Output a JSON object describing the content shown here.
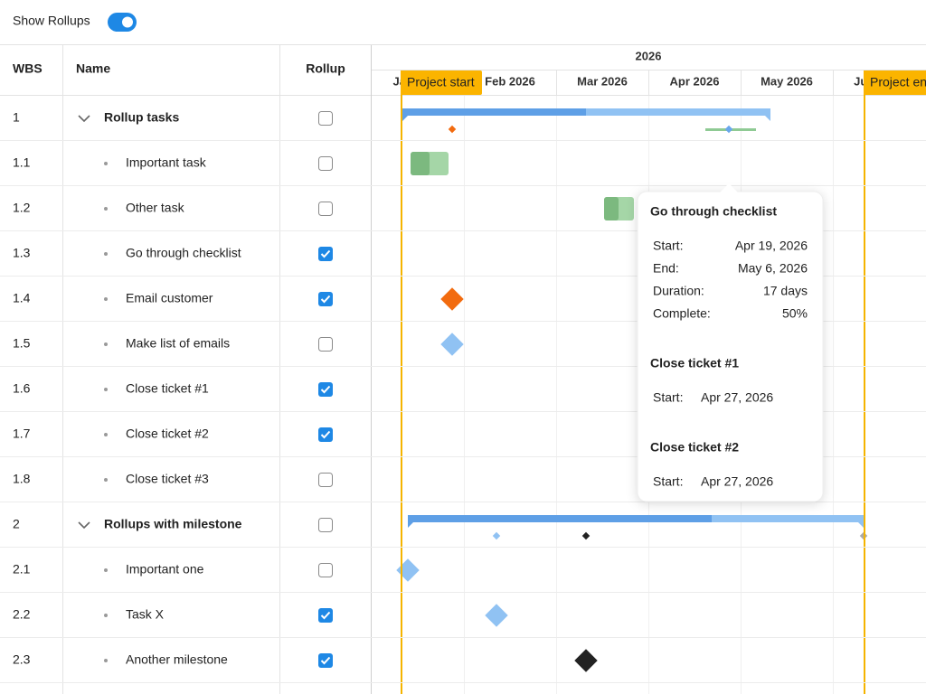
{
  "toolbar": {
    "label": "Show Rollups",
    "toggle_on": true
  },
  "grid": {
    "columns": [
      "WBS",
      "Name",
      "Rollup"
    ],
    "rows": [
      {
        "wbs": "1",
        "name": "Rollup tasks",
        "rollup": false,
        "expanded": true
      },
      {
        "wbs": "1.1",
        "name": "Important task",
        "rollup": false
      },
      {
        "wbs": "1.2",
        "name": "Other task",
        "rollup": false
      },
      {
        "wbs": "1.3",
        "name": "Go through checklist",
        "rollup": true
      },
      {
        "wbs": "1.4",
        "name": "Email customer",
        "rollup": true
      },
      {
        "wbs": "1.5",
        "name": "Make list of emails",
        "rollup": false
      },
      {
        "wbs": "1.6",
        "name": "Close ticket #1",
        "rollup": true
      },
      {
        "wbs": "1.7",
        "name": "Close ticket #2",
        "rollup": true
      },
      {
        "wbs": "1.8",
        "name": "Close ticket #3",
        "rollup": false
      },
      {
        "wbs": "2",
        "name": "Rollups with milestone",
        "rollup": false,
        "expanded": true
      },
      {
        "wbs": "2.1",
        "name": "Important one",
        "rollup": false
      },
      {
        "wbs": "2.2",
        "name": "Task X",
        "rollup": true
      },
      {
        "wbs": "2.3",
        "name": "Another milestone",
        "rollup": true
      }
    ]
  },
  "timeline": {
    "year": "2026",
    "months": [
      "Jan 2026",
      "Feb 2026",
      "Mar 2026",
      "Apr 2026",
      "May 2026",
      "Jun 2026"
    ],
    "lines": [
      "Project start",
      "Project end"
    ]
  },
  "tooltip": {
    "sections": [
      {
        "title": "Go through checklist",
        "fields": [
          [
            "Start:",
            "Apr 19, 2026"
          ],
          [
            "End:",
            "May 6, 2026"
          ],
          [
            "Duration:",
            "17 days"
          ],
          [
            "Complete:",
            "50%"
          ]
        ]
      },
      {
        "title": "Close ticket #1",
        "fields": [
          [
            "Start:",
            "Apr 27, 2026"
          ]
        ]
      },
      {
        "title": "Close ticket #2",
        "fields": [
          [
            "Start:",
            "Apr 27, 2026"
          ]
        ]
      }
    ]
  }
}
